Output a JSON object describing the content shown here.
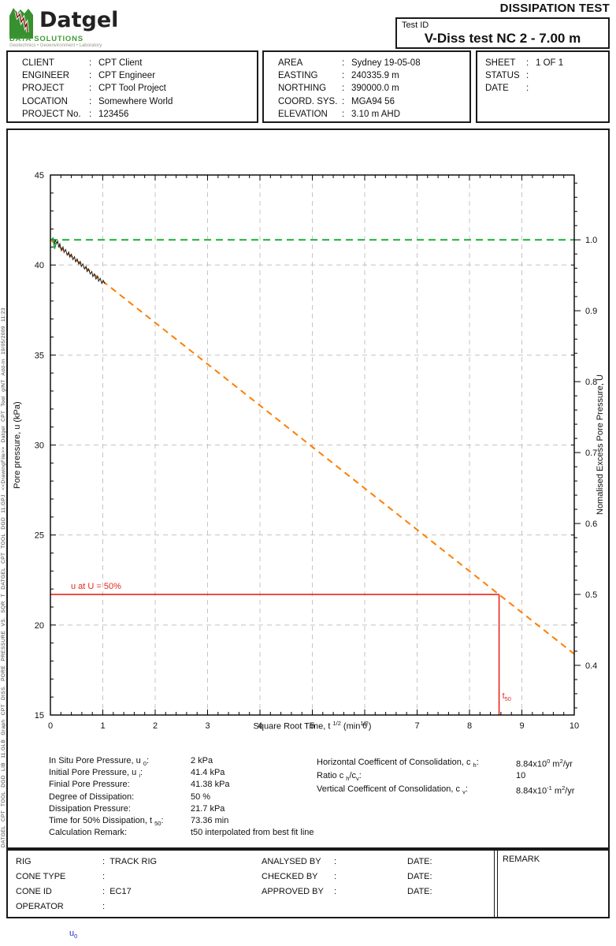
{
  "punct": {
    "colon": ":"
  },
  "header": {
    "report_title": "DISSIPATION TEST",
    "test_id_label": "Test ID",
    "test_id_value": "V-Diss test NC 2 - 7.00 m",
    "logo": {
      "name": "Datgel",
      "sub": "DATA SOLUTIONS",
      "tagline": "Geotechnics • Geoenvironment • Laboratory"
    }
  },
  "info": {
    "client_block": [
      {
        "label": "CLIENT",
        "value": "CPT Client"
      },
      {
        "label": "ENGINEER",
        "value": "CPT Engineer"
      },
      {
        "label": "PROJECT",
        "value": "CPT Tool Project"
      },
      {
        "label": "LOCATION",
        "value": "Somewhere World"
      },
      {
        "label": "PROJECT No.",
        "value": "123456"
      }
    ],
    "area_block": [
      {
        "label": "AREA",
        "value": "Sydney 19-05-08"
      },
      {
        "label": "EASTING",
        "value": "240335.9 m"
      },
      {
        "label": "NORTHING",
        "value": "390000.0 m"
      },
      {
        "label": "COORD. SYS.",
        "value": "MGA94 56"
      },
      {
        "label": "ELEVATION",
        "value": "3.10 m AHD"
      }
    ],
    "sheet_block": [
      {
        "label": "SHEET",
        "value": "1  OF  1"
      },
      {
        "label": "STATUS",
        "value": ""
      },
      {
        "label": "DATE",
        "value": ""
      }
    ]
  },
  "chart_data": {
    "type": "line",
    "x_axis": {
      "label_segments": [
        {
          "t": "Square Root Time, t "
        },
        {
          "t": "1/2",
          "v": "sup"
        },
        {
          "t": " (min"
        },
        {
          "t": "1/2",
          "v": "sup"
        },
        {
          "t": ")"
        }
      ],
      "min": 0,
      "max": 10,
      "major_ticks": [
        0,
        1,
        2,
        3,
        4,
        5,
        6,
        7,
        8,
        9,
        10
      ],
      "minor_step": 0.2
    },
    "y_left": {
      "label": "Pore pressure, u (kPa)",
      "min": 15,
      "max": 45,
      "major_ticks": [
        45,
        40,
        35,
        30,
        25,
        20,
        15
      ],
      "minor_step": 1
    },
    "y_right": {
      "label": "Nomalised Excess Pore Pressure, U",
      "u0_kpa": 2,
      "ui_kpa": 41.4,
      "major_ticks": [
        1.0,
        0.9,
        0.8,
        0.7,
        0.6,
        0.5,
        0.4
      ],
      "minor_step": 0.02
    },
    "gridlines": {
      "x": [
        1,
        2,
        3,
        4,
        5,
        6,
        7,
        8,
        9
      ],
      "u": [
        40,
        35,
        30,
        25,
        20
      ]
    },
    "grid_color": "#c4c4c4",
    "series": [
      {
        "name": "initial-pore-pressure-line",
        "color": "#17b135",
        "width": 2,
        "dash": "9,6",
        "points": [
          [
            0,
            41.4
          ],
          [
            10,
            41.4
          ]
        ]
      },
      {
        "name": "best-fit-line",
        "color": "#ff7d00",
        "width": 2,
        "dash": "8,6",
        "points": [
          [
            0,
            41.4
          ],
          [
            10,
            18.39
          ]
        ]
      },
      {
        "name": "measured-pore-pressure",
        "color": "#1a1a1a",
        "width": 1,
        "dash": null,
        "points": [
          [
            0.02,
            41.42
          ],
          [
            0.05,
            41.5
          ],
          [
            0.07,
            41.1
          ],
          [
            0.09,
            41.38
          ],
          [
            0.12,
            41.2
          ],
          [
            0.14,
            41.32
          ],
          [
            0.16,
            40.98
          ],
          [
            0.18,
            41.18
          ],
          [
            0.21,
            40.8
          ],
          [
            0.24,
            41.0
          ],
          [
            0.26,
            40.7
          ],
          [
            0.29,
            40.86
          ],
          [
            0.32,
            40.55
          ],
          [
            0.35,
            40.72
          ],
          [
            0.37,
            40.44
          ],
          [
            0.4,
            40.6
          ],
          [
            0.43,
            40.3
          ],
          [
            0.46,
            40.46
          ],
          [
            0.48,
            40.18
          ],
          [
            0.51,
            40.34
          ],
          [
            0.54,
            40.05
          ],
          [
            0.57,
            40.2
          ],
          [
            0.59,
            39.92
          ],
          [
            0.62,
            40.06
          ],
          [
            0.65,
            39.78
          ],
          [
            0.68,
            39.92
          ],
          [
            0.7,
            39.64
          ],
          [
            0.73,
            39.78
          ],
          [
            0.76,
            39.5
          ],
          [
            0.79,
            39.64
          ],
          [
            0.81,
            39.36
          ],
          [
            0.84,
            39.5
          ],
          [
            0.87,
            39.22
          ],
          [
            0.9,
            39.38
          ],
          [
            0.92,
            39.1
          ],
          [
            0.95,
            39.26
          ],
          [
            0.98,
            38.98
          ],
          [
            1.01,
            39.14
          ],
          [
            1.04,
            38.95
          ]
        ]
      },
      {
        "name": "measured-initial-green",
        "color": "#00a33c",
        "width": 1.4,
        "dash": null,
        "points": [
          [
            0.02,
            41.42
          ],
          [
            0.05,
            41.48
          ],
          [
            0.08,
            40.9
          ],
          [
            0.11,
            41.22
          ]
        ]
      }
    ],
    "annotations": {
      "u50_line": {
        "u_kpa": 21.7,
        "t_sqrt": 8.565,
        "color": "#e8251f",
        "label": "u at U = 50%",
        "t50_label_segments": [
          {
            "t": "t"
          },
          {
            "t": "50",
            "v": "sub"
          }
        ]
      }
    }
  },
  "summary": {
    "left": [
      {
        "label": [
          {
            "t": "In Situ Pore Pressure, u "
          },
          {
            "t": "0",
            "v": "sub"
          },
          {
            "t": ":"
          }
        ],
        "value": [
          {
            "t": "2 kPa"
          }
        ]
      },
      {
        "label": [
          {
            "t": "Initial Pore Pressure, u "
          },
          {
            "t": "i",
            "v": "sub"
          },
          {
            "t": ":"
          }
        ],
        "value": [
          {
            "t": "41.4 kPa"
          }
        ]
      },
      {
        "label": [
          {
            "t": "Finial Pore Pressure:"
          }
        ],
        "value": [
          {
            "t": "41.38 kPa"
          }
        ]
      },
      {
        "label": [
          {
            "t": "Degree of Dissipation:"
          }
        ],
        "value": [
          {
            "t": "50 %"
          }
        ]
      },
      {
        "label": [
          {
            "t": "Dissipation Pressure:"
          }
        ],
        "value": [
          {
            "t": "21.7 kPa"
          }
        ]
      },
      {
        "label": [
          {
            "t": "Time for 50% Dissipation, t "
          },
          {
            "t": "50",
            "v": "sub"
          },
          {
            "t": ":"
          }
        ],
        "value": [
          {
            "t": "73.36 min"
          }
        ]
      },
      {
        "label": [
          {
            "t": "Calculation Remark:"
          }
        ],
        "value": [
          {
            "t": "t50 interpolated from best fit line"
          }
        ]
      }
    ],
    "right": [
      {
        "label": [
          {
            "t": "Horizontal Coefficent of Consolidation, c "
          },
          {
            "t": "h",
            "v": "sub"
          },
          {
            "t": ":"
          }
        ],
        "value": [
          {
            "t": "8.84x10"
          },
          {
            "t": "0",
            "v": "sup"
          },
          {
            "t": " m"
          },
          {
            "t": "2",
            "v": "sup"
          },
          {
            "t": "/yr"
          }
        ]
      },
      {
        "label": [
          {
            "t": "Ratio c "
          },
          {
            "t": "h",
            "v": "sub"
          },
          {
            "t": "/c"
          },
          {
            "t": "v",
            "v": "sub"
          },
          {
            "t": ":"
          }
        ],
        "value": [
          {
            "t": "10"
          }
        ]
      },
      {
        "label": [
          {
            "t": "Vertical Coefficent of Consolidation, c "
          },
          {
            "t": "v",
            "v": "sub"
          },
          {
            "t": ":"
          }
        ],
        "value": [
          {
            "t": "8.84x10"
          },
          {
            "t": "-1",
            "v": "sup"
          },
          {
            "t": " m"
          },
          {
            "t": "2",
            "v": "sup"
          },
          {
            "t": "/yr"
          }
        ]
      }
    ]
  },
  "footer": {
    "left": [
      {
        "label": "RIG",
        "value": "TRACK RIG"
      },
      {
        "label": "CONE TYPE",
        "value": ""
      },
      {
        "label": "CONE ID",
        "value": "EC17"
      },
      {
        "label": "OPERATOR",
        "value": ""
      }
    ],
    "middle": [
      {
        "label": "ANALYSED BY",
        "date": "DATE:"
      },
      {
        "label": "CHECKED BY",
        "date": "DATE:"
      },
      {
        "label": "APPROVED BY",
        "date": "DATE:"
      }
    ],
    "remark_label": "REMARK"
  },
  "sidebar_text": "DATGEL CPT TOOL DGD LIB 11.GLB  Graph CPT DISS. PORE PRESSURE VS. SQR T  DATGEL CPT TOOL DGD 11.GPJ  <<DrawingFile>>  Datgel CPT Tool gINT Add-In 19/05/2009 11:23",
  "bottom_note_segments": [
    {
      "t": "u"
    },
    {
      "t": "0",
      "v": "sub"
    }
  ],
  "colors": {
    "initial_line_green": "#17b135",
    "best_fit_orange": "#ff7d00",
    "annotation_red": "#e8251f",
    "logo_green": "#3f9c35",
    "note_blue": "#2323cc"
  }
}
